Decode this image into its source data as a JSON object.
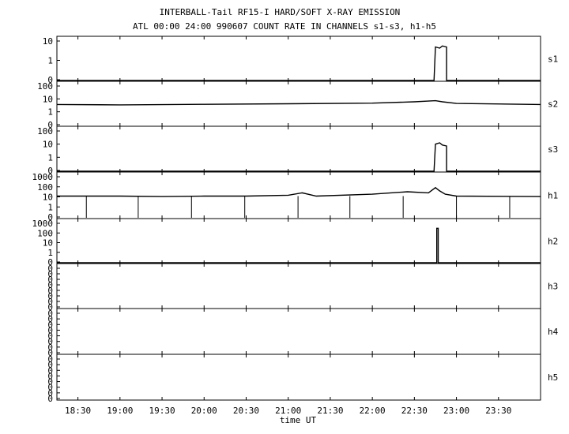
{
  "title_line1": "INTERBALL-Tail RF15-I HARD/SOFT X-RAY EMISSION",
  "title_line2": "ATL 00:00 24:00 990607  COUNT RATE IN CHANNELS s1-s3, h1-h5",
  "xlabel": "time UT",
  "chart_data": {
    "type": "line",
    "x_unit": "UT",
    "xlim": [
      "18:15",
      "24:00"
    ],
    "x_ticks": [
      "18:30",
      "19:00",
      "19:30",
      "20:00",
      "20:30",
      "21:00",
      "21:30",
      "22:00",
      "22:30",
      "23:00",
      "23:30"
    ],
    "yscale": "log",
    "panels": [
      {
        "name": "s1",
        "y_tick_labels": [
          "10",
          "1",
          "0"
        ],
        "ylim": [
          0.1,
          20
        ],
        "points": [
          [
            "18:15",
            0
          ],
          [
            "22:44",
            0
          ],
          [
            "22:45",
            7
          ],
          [
            "22:48",
            6
          ],
          [
            "22:50",
            8
          ],
          [
            "22:53",
            7
          ],
          [
            "22:53",
            0
          ],
          [
            "24:00",
            0
          ]
        ]
      },
      {
        "name": "s2",
        "y_tick_labels": [
          "100",
          "10",
          "1",
          "0"
        ],
        "ylim": [
          0.1,
          100
        ],
        "points": [
          [
            "18:15",
            3.2
          ],
          [
            "19:00",
            3.0
          ],
          [
            "20:00",
            3.3
          ],
          [
            "21:00",
            3.6
          ],
          [
            "22:00",
            4.0
          ],
          [
            "22:30",
            5.0
          ],
          [
            "22:45",
            6.0
          ],
          [
            "22:50",
            5.0
          ],
          [
            "23:00",
            3.8
          ],
          [
            "24:00",
            3.2
          ]
        ]
      },
      {
        "name": "s3",
        "y_tick_labels": [
          "100",
          "10",
          "1",
          "0"
        ],
        "ylim": [
          0.1,
          100
        ],
        "points": [
          [
            "18:15",
            0
          ],
          [
            "22:44",
            0
          ],
          [
            "22:45",
            8
          ],
          [
            "22:48",
            10
          ],
          [
            "22:50",
            7
          ],
          [
            "22:53",
            6
          ],
          [
            "22:53",
            0
          ],
          [
            "24:00",
            0
          ]
        ]
      },
      {
        "name": "h1",
        "y_tick_labels": [
          "1000",
          "100",
          "10",
          "1",
          "0"
        ],
        "ylim": [
          0.1,
          1000
        ],
        "points": [
          [
            "18:15",
            10
          ],
          [
            "19:00",
            10
          ],
          [
            "19:30",
            9
          ],
          [
            "20:00",
            10
          ],
          [
            "20:30",
            10
          ],
          [
            "21:00",
            12
          ],
          [
            "21:10",
            20
          ],
          [
            "21:20",
            10
          ],
          [
            "22:00",
            15
          ],
          [
            "22:25",
            25
          ],
          [
            "22:40",
            20
          ],
          [
            "22:45",
            60
          ],
          [
            "22:48",
            30
          ],
          [
            "22:52",
            15
          ],
          [
            "23:00",
            10
          ],
          [
            "24:00",
            9
          ]
        ],
        "dropouts": [
          "18:36",
          "19:13",
          "19:51",
          "20:29",
          "21:07",
          "21:44",
          "22:22",
          "23:00",
          "23:38"
        ]
      },
      {
        "name": "h2",
        "y_tick_labels": [
          "1000",
          "100",
          "10",
          "1",
          "0"
        ],
        "ylim": [
          0.1,
          1000
        ],
        "points": [
          [
            "18:15",
            0
          ],
          [
            "22:46",
            0
          ],
          [
            "22:46",
            200
          ],
          [
            "22:47",
            200
          ],
          [
            "22:47",
            0
          ],
          [
            "24:00",
            0
          ]
        ]
      },
      {
        "name": "h3",
        "y_tick_labels": [
          "0",
          "0",
          "0",
          "0",
          "0",
          "0",
          "0",
          "0"
        ],
        "points": []
      },
      {
        "name": "h4",
        "y_tick_labels": [
          "0",
          "0",
          "0",
          "0",
          "0",
          "0",
          "0",
          "0"
        ],
        "points": []
      },
      {
        "name": "h5",
        "y_tick_labels": [
          "0",
          "0",
          "0",
          "0",
          "0",
          "0",
          "0",
          "0"
        ],
        "points": []
      }
    ]
  }
}
